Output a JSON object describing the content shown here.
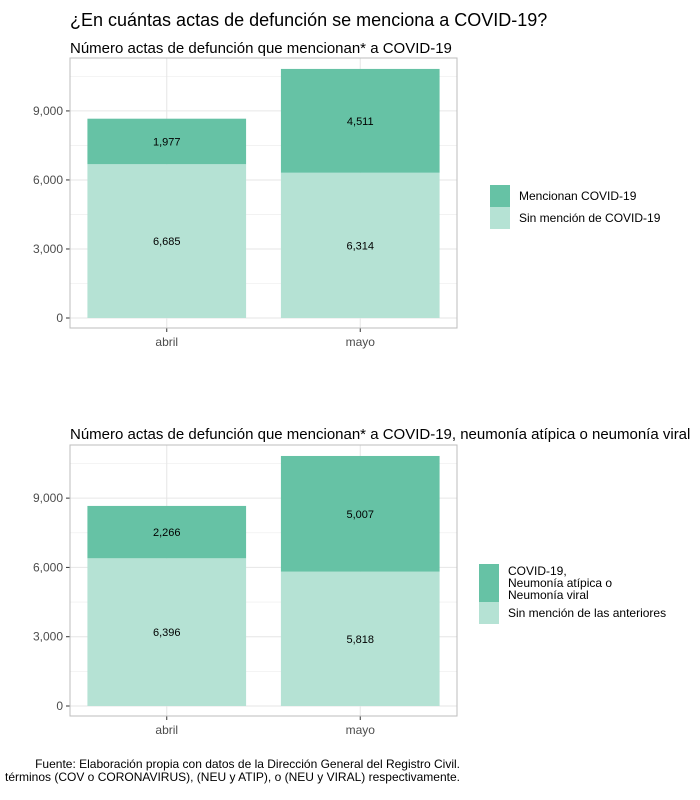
{
  "page": {
    "title": "¿En cuántas actas de defunción se menciona a COVID-19?",
    "footnote_line1": "Fuente: Elaboración propia con datos de la Dirección General del Registro Civil.",
    "footnote_line2": "términos (COV o CORONAVIRUS), (NEU y ATIP), o (NEU y VIRAL) respectivamente."
  },
  "colors": {
    "dark": "#66c2a5",
    "light": "#b5e2d4",
    "grid": "#e6e6e6",
    "panel_border": "#bdbdbd",
    "axis_text": "#4d4d4d"
  },
  "chart_data": [
    {
      "type": "bar",
      "stacked": true,
      "title": "Número actas de defunción que mencionan* a COVID-19",
      "categories": [
        "abril",
        "mayo"
      ],
      "series": [
        {
          "name": "Sin mención de COVID-19",
          "values": [
            6685,
            6314
          ],
          "labels": [
            "6,685",
            "6,314"
          ],
          "color": "#b5e2d4"
        },
        {
          "name": "Mencionan COVID-19",
          "values": [
            1977,
            4511
          ],
          "labels": [
            "1,977",
            "4,511"
          ],
          "color": "#66c2a5"
        }
      ],
      "yticks": [
        0,
        3000,
        6000,
        9000
      ],
      "ytick_labels": [
        "0",
        "3,000",
        "6,000",
        "9,000"
      ],
      "ylim": [
        0,
        11300
      ],
      "legend_position": "right",
      "legend_order": [
        "Mencionan COVID-19",
        "Sin mención de COVID-19"
      ],
      "grid": true
    },
    {
      "type": "bar",
      "stacked": true,
      "title": "Número actas de defunción que mencionan* a COVID-19, neumonía atípica o neumonía viral",
      "categories": [
        "abril",
        "mayo"
      ],
      "series": [
        {
          "name": "Sin mención de las anteriores",
          "values": [
            6396,
            5818
          ],
          "labels": [
            "6,396",
            "5,818"
          ],
          "color": "#b5e2d4"
        },
        {
          "name": "COVID-19,\nNeumonía atípica o\nNeumonía viral",
          "values": [
            2266,
            5007
          ],
          "labels": [
            "2,266",
            "5,007"
          ],
          "color": "#66c2a5"
        }
      ],
      "yticks": [
        0,
        3000,
        6000,
        9000
      ],
      "ytick_labels": [
        "0",
        "3,000",
        "6,000",
        "9,000"
      ],
      "ylim": [
        0,
        11300
      ],
      "legend_position": "right",
      "legend_order": [
        "COVID-19,\nNeumonía atípica o\nNeumonía viral",
        "Sin mención de las anteriores"
      ],
      "grid": true
    }
  ]
}
